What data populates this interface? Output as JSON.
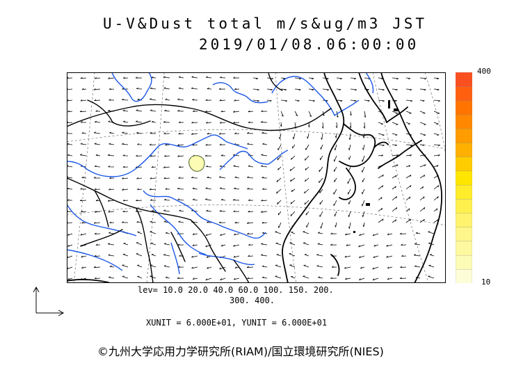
{
  "title": {
    "line1": "U-V&Dust total m/s&ug/m3 JST",
    "line2": "2019/01/08.06:00:00"
  },
  "colorbar": {
    "max_label": "400",
    "min_label": "10",
    "colors": [
      "#fdfdd8",
      "#fdfcb6",
      "#fdf9a0",
      "#fef68a",
      "#fff36e",
      "#fff04e",
      "#ffec2a",
      "#ffe600",
      "#ffcc00",
      "#ffb000",
      "#ff9c00",
      "#ff8800",
      "#ff7400",
      "#ff6010",
      "#fa5020"
    ]
  },
  "contour_levels": {
    "line1": "lev= 10.0 20.0 40.0 60.0 100. 150. 200.",
    "line2": "300. 400."
  },
  "units_line": "XUNIT = 6.000E+01, YUNIT = 6.000E+01",
  "copyright": "©九州大学応用力学研究所(RIAM)/国立環境研究所(NIES)"
}
